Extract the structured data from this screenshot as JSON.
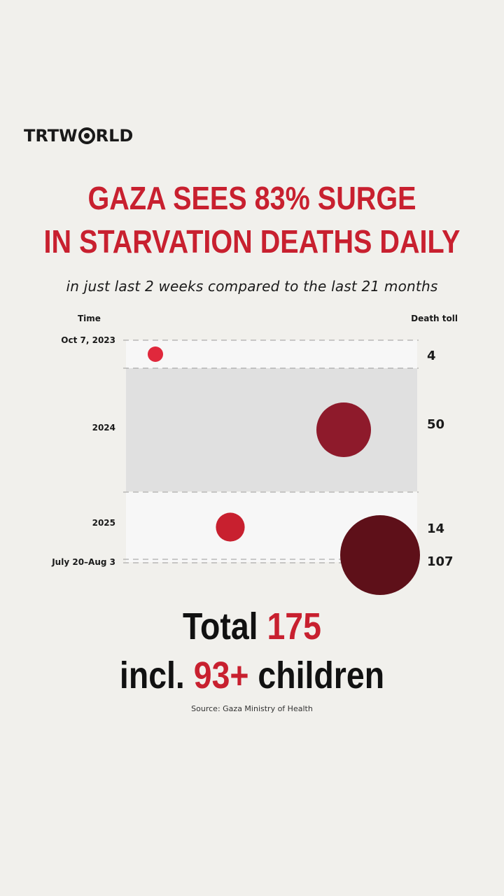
{
  "brand": {
    "part1": "TRT",
    "part2": "W",
    "part3": "RLD"
  },
  "headline": {
    "line1": "GAZA SEES 83% SURGE",
    "line2": "IN STARVATION DEATHS DAILY"
  },
  "subheadline": "in just last 2 weeks compared to the last 21 months",
  "colors": {
    "accent": "#c8202f",
    "dot_2023": "#e0283c",
    "dot_2024": "#8e1a2b",
    "dot_2025": "#c8202f",
    "dot_recent": "#5e1019",
    "band_dark": "#e0e0e0",
    "band_light": "#f7f7f7"
  },
  "chart_data": {
    "type": "bubble",
    "time_label": "Time",
    "value_label": "Death toll",
    "rows": [
      {
        "period": "Oct 7, 2023",
        "deaths": 4
      },
      {
        "period": "2024",
        "deaths": 50
      },
      {
        "period": "2025",
        "deaths": 14
      },
      {
        "period": "July 20–Aug 3",
        "deaths": 107
      }
    ]
  },
  "total": {
    "prefix": "Total ",
    "value": "175"
  },
  "incl": {
    "prefix": "incl. ",
    "value": "93+",
    "suffix": " children"
  },
  "source": "Source: Gaza Ministry of Health"
}
